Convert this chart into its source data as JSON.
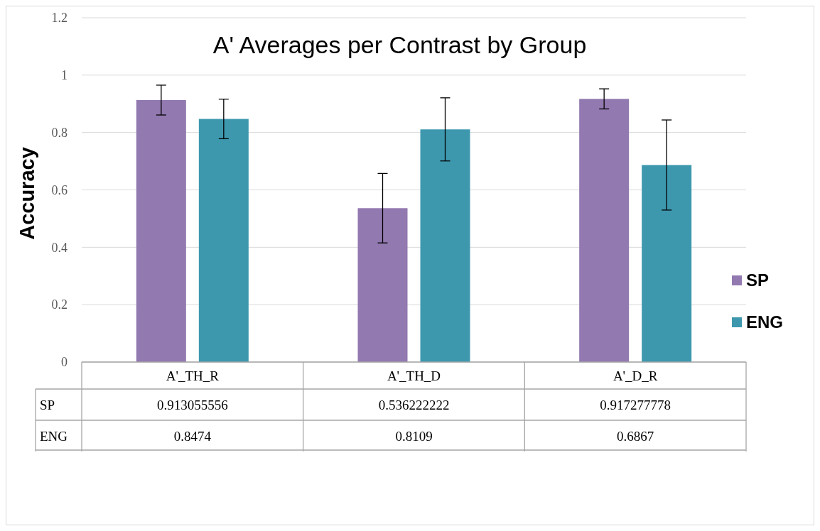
{
  "chart_data": {
    "type": "bar",
    "title": "A' Averages per Contrast by Group",
    "ylabel": "Accuracy",
    "categories": [
      "A'_TH_R",
      "A'_TH_D",
      "A'_D_R"
    ],
    "series": [
      {
        "name": "SP",
        "color": "#9279b0",
        "values": [
          0.913055556,
          0.536222222,
          0.917277778
        ],
        "errors": [
          0.052,
          0.121,
          0.035
        ]
      },
      {
        "name": "ENG",
        "color": "#3d98ae",
        "values": [
          0.8474,
          0.8109,
          0.6867
        ],
        "errors": [
          0.069,
          0.11,
          0.157
        ]
      }
    ],
    "ylim": [
      0,
      1.2
    ],
    "yticks": [
      0,
      0.2,
      0.4,
      0.6,
      0.8,
      1,
      1.2
    ],
    "grid": "y",
    "legend": "right",
    "data_labels": true
  }
}
